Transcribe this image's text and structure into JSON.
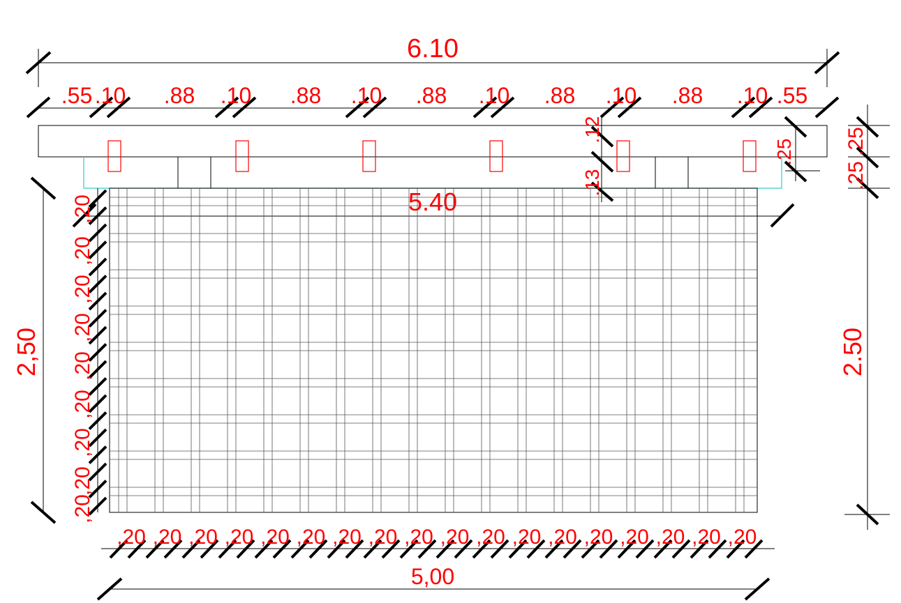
{
  "drawing": {
    "colors": {
      "dimension_text": "#ff0000",
      "line": "#000000",
      "grid": "#555555",
      "outline": "#33cccc"
    },
    "overall_width_label": "6.10",
    "top_segment_labels": [
      ".55",
      ".10",
      ".88",
      ".10",
      ".88",
      ".10",
      ".88",
      ".10",
      ".88",
      ".10",
      ".88",
      ".10",
      ".55"
    ],
    "inner_width_label": "5.40",
    "right_small_labels": [
      ".25",
      ".12",
      ".13"
    ],
    "far_right_labels": [
      ".25",
      ".25"
    ],
    "left_height_label": "2,50",
    "right_height_label": "2.50",
    "left_spacing_labels": [
      ",20",
      ",20",
      ",20",
      ",20",
      ",20",
      ",20",
      ",20",
      ",20",
      ",20",
      ",20",
      ",20",
      ",20",
      ",20",
      ",20",
      ",20",
      ",20",
      ",20",
      ",20",
      ",20"
    ],
    "bottom_spacing_labels": [
      ",20",
      ",20",
      ",20",
      ",20",
      ",20",
      ",20",
      ",20",
      ",20",
      ",20",
      ",20",
      ",20",
      ",20",
      ",20",
      ",20",
      ",20",
      ",20",
      ",20",
      ",20"
    ],
    "bottom_width_label": "5,00"
  }
}
